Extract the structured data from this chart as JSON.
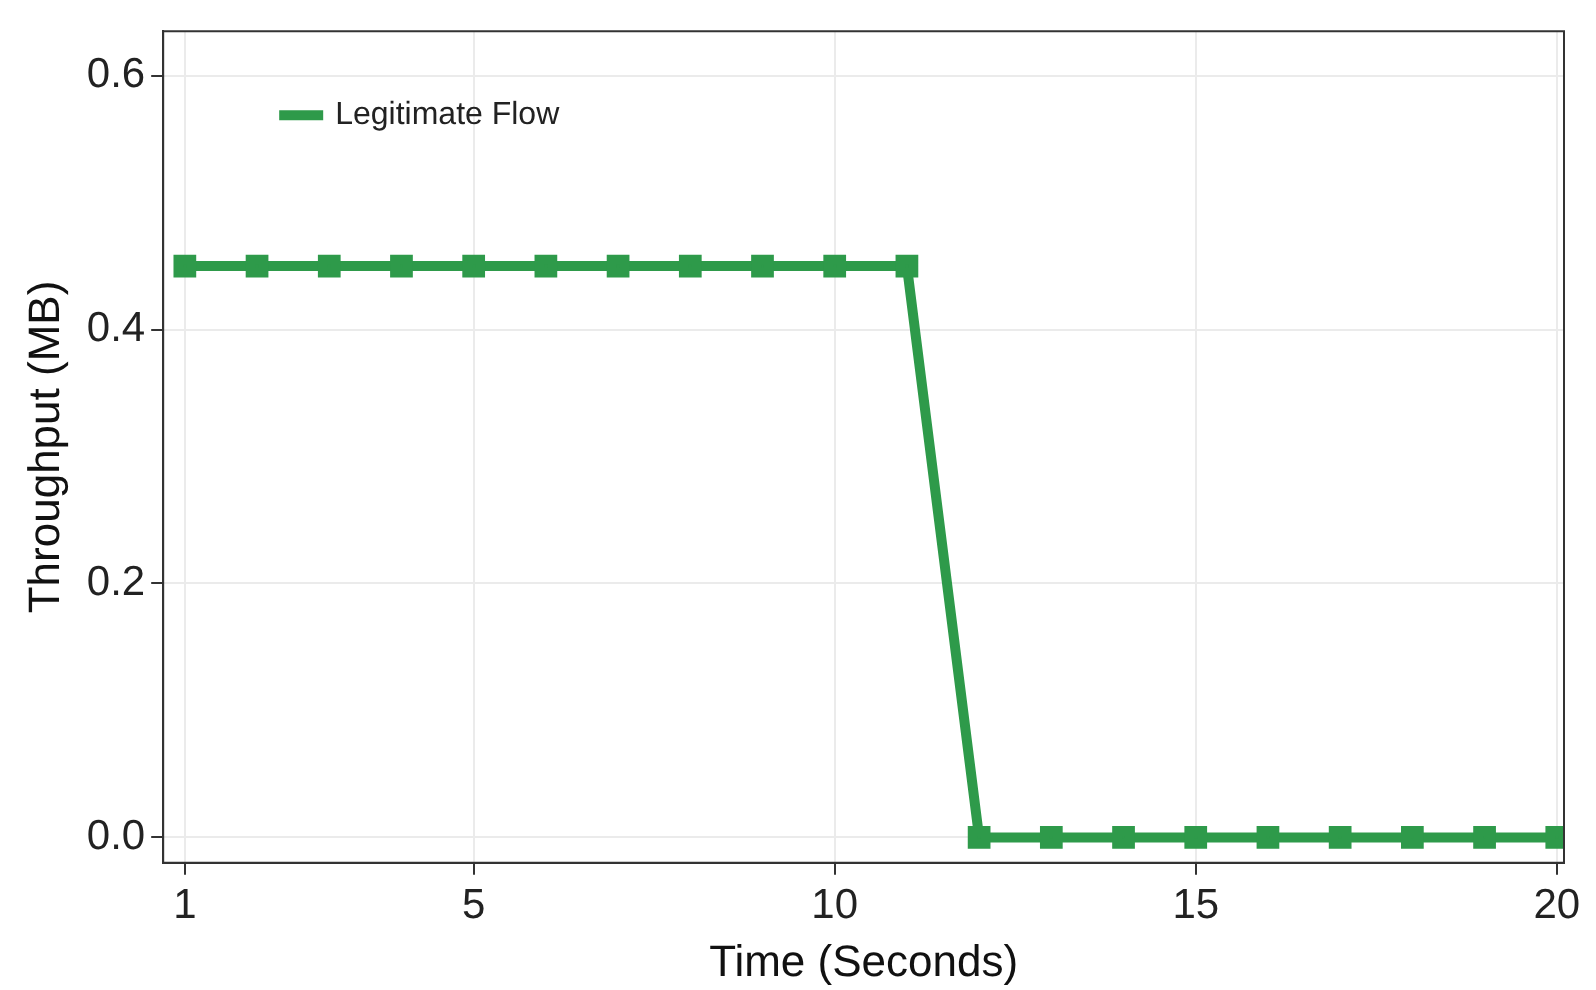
{
  "chart_data": {
    "type": "line",
    "xlabel": "Time (Seconds)",
    "ylabel": "Throughput (MB)",
    "x": [
      1,
      2,
      3,
      4,
      5,
      6,
      7,
      8,
      9,
      10,
      11,
      12,
      13,
      14,
      15,
      16,
      17,
      18,
      19,
      20
    ],
    "series": [
      {
        "name": "Legitimate Flow",
        "color": "#2e9a4a",
        "values": [
          0.45,
          0.45,
          0.45,
          0.45,
          0.45,
          0.45,
          0.45,
          0.45,
          0.45,
          0.45,
          0.45,
          0,
          0,
          0,
          0,
          0,
          0,
          0,
          0,
          0
        ]
      }
    ],
    "xlim": [
      0.7,
      20.1
    ],
    "xticks": [
      1,
      5,
      10,
      15,
      20
    ],
    "ylim": [
      -0.02,
      0.635
    ],
    "yticks": [
      {
        "value": 0,
        "label": "0.0"
      },
      {
        "value": 0.2,
        "label": "0.2"
      },
      {
        "value": 0.4,
        "label": "0.4"
      },
      {
        "value": 0.6,
        "label": "0.6"
      }
    ],
    "grid": true,
    "legend": "top left",
    "marker": "square",
    "line_style": "solid"
  }
}
